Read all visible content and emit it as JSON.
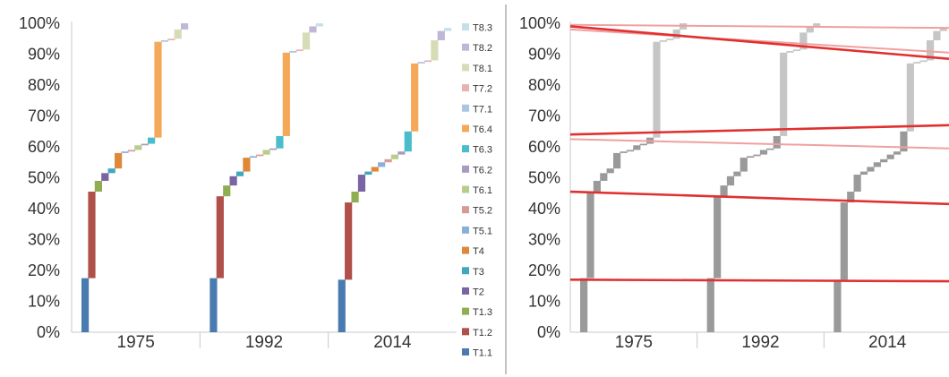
{
  "chart_data": [
    {
      "type": "bar",
      "subtype": "stacked-step-waterfall",
      "title": "",
      "xlabel": "",
      "ylabel": "",
      "ylim": [
        0,
        100
      ],
      "y_ticks": [
        "0%",
        "10%",
        "20%",
        "30%",
        "40%",
        "50%",
        "60%",
        "70%",
        "80%",
        "90%",
        "100%"
      ],
      "categories": [
        "1975",
        "1992",
        "2014"
      ],
      "grid": false,
      "legend_position": "right",
      "series": [
        {
          "name": "T1.1",
          "color": "#4a7bb0",
          "values": [
            17.5,
            17.5,
            17.0
          ]
        },
        {
          "name": "T1.2",
          "color": "#b0504a",
          "values": [
            28.0,
            26.5,
            25.0
          ]
        },
        {
          "name": "T1.3",
          "color": "#8fae52",
          "values": [
            3.5,
            3.5,
            3.5
          ]
        },
        {
          "name": "T2",
          "color": "#7a64a4",
          "values": [
            2.5,
            3.0,
            5.5
          ]
        },
        {
          "name": "T3",
          "color": "#3fa8bf",
          "values": [
            1.5,
            1.5,
            1.0
          ]
        },
        {
          "name": "T4",
          "color": "#e0883a",
          "values": [
            5.0,
            4.5,
            1.5
          ]
        },
        {
          "name": "T5.1",
          "color": "#8bb0d8",
          "values": [
            0.5,
            0.5,
            1.5
          ]
        },
        {
          "name": "T5.2",
          "color": "#d89a98",
          "values": [
            0.5,
            0.5,
            1.0
          ]
        },
        {
          "name": "T6.1",
          "color": "#b8cc8c",
          "values": [
            1.5,
            1.5,
            1.5
          ]
        },
        {
          "name": "T6.2",
          "color": "#a89ac0",
          "values": [
            0.5,
            0.5,
            1.0
          ]
        },
        {
          "name": "T6.3",
          "color": "#4bbccc",
          "values": [
            2.0,
            4.0,
            6.5
          ]
        },
        {
          "name": "T6.4",
          "color": "#f4a958",
          "values": [
            31.0,
            27.0,
            22.0
          ]
        },
        {
          "name": "T7.1",
          "color": "#a9c6e6",
          "values": [
            0.5,
            0.5,
            0.5
          ]
        },
        {
          "name": "T7.2",
          "color": "#e8b2b0",
          "values": [
            0.5,
            0.5,
            0.5
          ]
        },
        {
          "name": "T8.1",
          "color": "#d6dcb6",
          "values": [
            3.0,
            5.5,
            6.5
          ]
        },
        {
          "name": "T8.2",
          "color": "#c0b6d6",
          "values": [
            2.0,
            2.0,
            3.0
          ]
        },
        {
          "name": "T8.3",
          "color": "#c6e0e8",
          "values": [
            0.0,
            1.0,
            1.0
          ]
        }
      ],
      "legend_order": [
        "T8.3",
        "T8.2",
        "T8.1",
        "T7.2",
        "T7.1",
        "T6.4",
        "T6.3",
        "T6.2",
        "T6.1",
        "T5.2",
        "T5.1",
        "T4",
        "T3",
        "T2",
        "T1.3",
        "T1.2",
        "T1.1"
      ]
    },
    {
      "type": "bar",
      "subtype": "stacked-step-waterfall-annotated",
      "title": "",
      "xlabel": "",
      "ylabel": "",
      "ylim": [
        0,
        100
      ],
      "y_ticks": [
        "0%",
        "10%",
        "20%",
        "30%",
        "40%",
        "50%",
        "60%",
        "70%",
        "80%",
        "90%",
        "100%"
      ],
      "categories": [
        "1975",
        "1992",
        "2014"
      ],
      "grid": false,
      "same_data_as_first_chart": true,
      "mark_colors": [
        "#9a9a9a",
        "#c6c6c6"
      ],
      "annotation_color": "#e03030",
      "red_trend_lines": [
        {
          "from": 17.0,
          "to": 16.5
        },
        {
          "from": 45.5,
          "to": 41.5
        },
        {
          "from": 64.0,
          "to": 67.0
        },
        {
          "from": 99.0,
          "to": 88.5
        }
      ],
      "pink_trend_lines": [
        {
          "from": 62.5,
          "to": 59.5
        },
        {
          "from": 99.5,
          "to": 98.5
        },
        {
          "from": 98.0,
          "to": 90.5
        }
      ]
    }
  ]
}
